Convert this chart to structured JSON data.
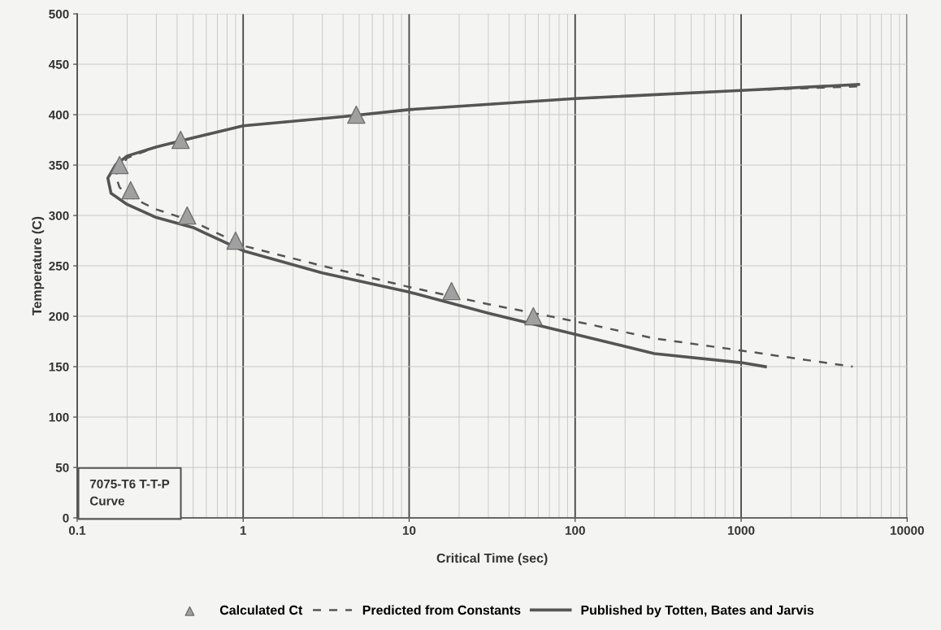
{
  "chart_data": {
    "type": "line",
    "xlabel": "Critical Time (sec)",
    "ylabel": "Temperature (C)",
    "log": "x",
    "xlim": [
      0.1,
      10000
    ],
    "xticks": [
      0.1,
      1,
      10,
      100,
      1000,
      10000
    ],
    "ylim": [
      0,
      500
    ],
    "yticks": [
      0,
      50,
      100,
      150,
      200,
      250,
      300,
      350,
      400,
      450,
      500
    ],
    "grid": true,
    "legend": "bottom",
    "annotations": [
      "7075-T6 T-T-P\nCurve"
    ],
    "series": [
      {
        "name": "Calculated Ct",
        "type": "scatter",
        "marker": "triangle",
        "color": "#a0a0a0",
        "x": [
          0.18,
          0.21,
          0.42,
          0.46,
          0.9,
          4.8,
          18,
          56
        ],
        "values": [
          350,
          325,
          375,
          300,
          275,
          400,
          225,
          200
        ]
      },
      {
        "name": "Predicted from Constants",
        "line_style": "dashed",
        "color": "#555555",
        "x": [
          5000,
          1000,
          100,
          10,
          4,
          1,
          0.5,
          0.3,
          0.2,
          0.17,
          0.18,
          0.2,
          0.3,
          0.5,
          1,
          3,
          10,
          30,
          100,
          300,
          1000,
          4700
        ],
        "values": [
          428,
          424,
          416,
          405,
          398,
          389,
          377,
          368,
          357,
          340,
          328,
          320,
          306,
          294,
          270,
          250,
          229,
          212,
          195,
          178,
          166,
          150
        ]
      },
      {
        "name": "Published by Totten, Bates and Jarvis",
        "line_style": "solid",
        "color": "#555555",
        "x": [
          5100,
          1000,
          100,
          10,
          4,
          1,
          0.5,
          0.3,
          0.2,
          0.17,
          0.153,
          0.16,
          0.2,
          0.3,
          0.5,
          1,
          3,
          10,
          30,
          100,
          300,
          1000,
          1400
        ],
        "values": [
          430,
          424,
          416,
          405,
          398,
          389,
          377,
          368,
          359,
          350,
          337,
          322,
          311,
          298,
          288,
          265,
          243,
          224,
          203,
          182,
          163,
          154,
          150
        ]
      }
    ]
  }
}
